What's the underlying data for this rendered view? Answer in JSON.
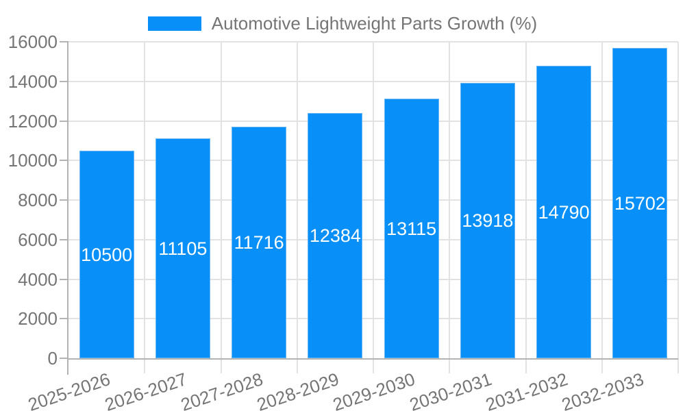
{
  "legend": {
    "label": "Automotive Lightweight Parts Growth (%)"
  },
  "chart_data": {
    "type": "bar",
    "title": "Automotive Lightweight Parts Growth (%)",
    "categories": [
      "2025-2026",
      "2026-2027",
      "2027-2028",
      "2028-2029",
      "2029-2030",
      "2030-2031",
      "2031-2032",
      "2032-2033"
    ],
    "values": [
      10500,
      11105,
      11716,
      12384,
      13115,
      13918,
      14790,
      15702
    ],
    "value_labels": [
      "10500",
      "11105",
      "11716",
      "12384",
      "13115",
      "13918",
      "14790",
      "15702"
    ],
    "y_ticks": [
      0,
      2000,
      4000,
      6000,
      8000,
      10000,
      12000,
      14000,
      16000
    ],
    "ylim": [
      0,
      16000
    ],
    "grid": true,
    "legend_position": "top",
    "x_label_rotation_deg": -18.5,
    "colors": {
      "bar": "#0890f8",
      "bar_border": "#69b6f5",
      "grid": "#e2e2e2",
      "axis": "#b3b3b3",
      "text": "#757575",
      "value_text": "#ffffff"
    }
  }
}
